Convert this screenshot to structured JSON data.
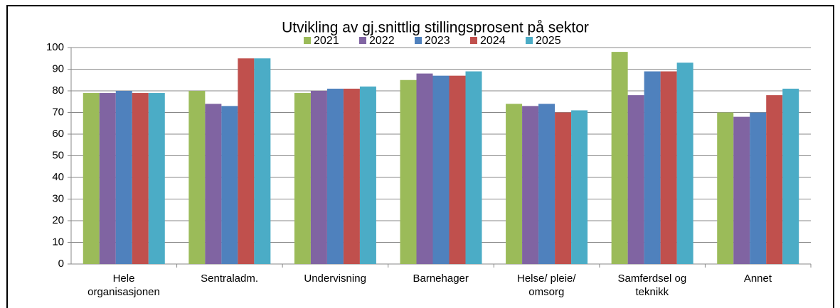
{
  "chart_data": {
    "type": "bar",
    "title": "Utvikling av gj.snittlig stillingsprosent på sektor",
    "categories": [
      "Hele\norganisasjonen",
      "Sentraladm.",
      "Undervisning",
      "Barnehager",
      "Helse/ pleie/\nomsorg",
      "Samferdsel og\nteknikk",
      "Annet"
    ],
    "series": [
      {
        "name": "2021",
        "color": "#9bbb59",
        "values": [
          79,
          80,
          79,
          85,
          74,
          98,
          70
        ]
      },
      {
        "name": "2022",
        "color": "#8064a2",
        "values": [
          79,
          74,
          80,
          88,
          73,
          78,
          68
        ]
      },
      {
        "name": "2023",
        "color": "#4f81bd",
        "values": [
          80,
          73,
          81,
          87,
          74,
          89,
          70
        ]
      },
      {
        "name": "2024",
        "color": "#c0504d",
        "values": [
          79,
          95,
          81,
          87,
          70,
          89,
          78
        ]
      },
      {
        "name": "2025",
        "color": "#4bacc6",
        "values": [
          79,
          95,
          82,
          89,
          71,
          93,
          81
        ]
      }
    ],
    "ylim": [
      0,
      100
    ],
    "yticks": [
      0,
      10,
      20,
      30,
      40,
      50,
      60,
      70,
      80,
      90,
      100
    ],
    "grid": true,
    "legend": "top"
  }
}
